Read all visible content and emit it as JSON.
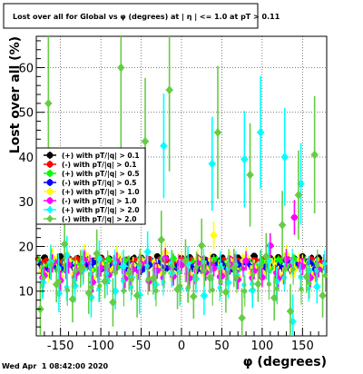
{
  "chart_data": {
    "type": "scatter",
    "title": "Lost over all for Global vs φ (degrees) at | η | <= 1.0 at pT > 0.11",
    "xlabel": "φ (degrees)",
    "ylabel": "Lost over all (%)",
    "xlim": [
      -180,
      180
    ],
    "ylim": [
      0,
      67
    ],
    "xticks": [
      -150,
      -100,
      -50,
      0,
      50,
      100,
      150
    ],
    "yticks": [
      10,
      20,
      30,
      40,
      50,
      60
    ],
    "grid": true,
    "legend_position": "left",
    "timestamp": "Wed Apr  1 08:42:00 2020",
    "series": [
      {
        "name": "(+) with pT/|q| > 0.1",
        "color": "#000000",
        "marker": "circle",
        "base": 17.2,
        "noise": 0.7,
        "err": 0.6,
        "x": [
          -170,
          -160,
          -150,
          -140,
          -130,
          -120,
          -110,
          -100,
          -90,
          -80,
          -70,
          -60,
          -50,
          -40,
          -30,
          -20,
          -10,
          0,
          10,
          20,
          30,
          40,
          50,
          60,
          70,
          80,
          90,
          100,
          110,
          120,
          130,
          140,
          150,
          160,
          170
        ],
        "y": [
          17.5,
          17.0,
          17.8,
          16.9,
          17.3,
          17.6,
          16.8,
          17.4,
          17.1,
          17.7,
          16.9,
          17.2,
          17.5,
          17.0,
          17.8,
          17.3,
          16.9,
          17.4,
          17.6,
          17.1,
          17.0,
          17.7,
          17.3,
          16.8,
          17.5,
          17.2,
          17.9,
          17.0,
          17.4,
          17.6,
          16.9,
          17.3,
          17.8,
          17.1,
          17.5
        ]
      },
      {
        "name": "(-) with pT/|q| > 0.1",
        "color": "#ff0000",
        "marker": "circle",
        "base": 16.8,
        "noise": 0.7,
        "err": 0.6,
        "x": [
          -170,
          -160,
          -150,
          -140,
          -130,
          -120,
          -110,
          -100,
          -90,
          -80,
          -70,
          -60,
          -50,
          -40,
          -30,
          -20,
          -10,
          0,
          10,
          20,
          30,
          40,
          50,
          60,
          70,
          80,
          90,
          100,
          110,
          120,
          130,
          140,
          150,
          160,
          170
        ],
        "y": [
          16.5,
          17.0,
          16.4,
          16.9,
          17.2,
          16.6,
          16.8,
          17.1,
          16.3,
          16.9,
          17.0,
          16.5,
          16.7,
          17.2,
          16.6,
          16.9,
          16.4,
          17.1,
          16.8,
          16.5,
          17.0,
          16.7,
          16.3,
          17.2,
          16.8,
          16.6,
          16.9,
          17.1,
          16.4,
          16.8,
          17.0,
          16.5,
          16.7,
          17.1,
          16.6
        ]
      },
      {
        "name": "(+) with pT/|q| > 0.5",
        "color": "#00ff00",
        "marker": "circle",
        "base": 16.0,
        "noise": 1.5,
        "err": 1.0,
        "x": [
          -170,
          -160,
          -150,
          -140,
          -130,
          -120,
          -110,
          -100,
          -90,
          -80,
          -70,
          -60,
          -50,
          -40,
          -30,
          -20,
          -10,
          0,
          10,
          20,
          30,
          40,
          50,
          60,
          70,
          80,
          90,
          100,
          110,
          120,
          130,
          140,
          150,
          160,
          170
        ],
        "y": [
          15.2,
          17.1,
          14.6,
          16.8,
          15.9,
          17.4,
          14.8,
          16.2,
          17.0,
          15.3,
          16.6,
          14.9,
          17.2,
          15.8,
          16.4,
          15.0,
          17.3,
          16.1,
          14.7,
          16.9,
          15.5,
          17.0,
          15.9,
          16.3,
          14.8,
          17.2,
          15.6,
          16.6,
          15.1,
          16.9,
          15.4,
          17.1,
          15.8,
          16.2,
          15.5
        ]
      },
      {
        "name": "(-) with pT/|q| > 0.5",
        "color": "#0000ff",
        "marker": "circle",
        "base": 15.6,
        "noise": 1.5,
        "err": 1.0,
        "x": [
          -170,
          -160,
          -150,
          -140,
          -130,
          -120,
          -110,
          -100,
          -90,
          -80,
          -70,
          -60,
          -50,
          -40,
          -30,
          -20,
          -10,
          0,
          10,
          20,
          30,
          40,
          50,
          60,
          70,
          80,
          90,
          100,
          110,
          120,
          130,
          140,
          150,
          160,
          170
        ],
        "y": [
          14.8,
          16.2,
          15.1,
          16.7,
          14.5,
          15.9,
          16.4,
          14.9,
          15.6,
          16.8,
          15.0,
          16.1,
          14.7,
          15.8,
          16.5,
          15.2,
          14.6,
          16.3,
          15.7,
          14.9,
          16.6,
          15.3,
          16.0,
          14.8,
          15.9,
          16.4,
          15.1,
          14.7,
          16.2,
          15.5,
          16.8,
          14.9,
          15.7,
          16.1,
          15.4
        ]
      },
      {
        "name": "(+) with pT/|q| > 1.0",
        "color": "#ffff00",
        "marker": "circle",
        "base": 15.2,
        "noise": 3.0,
        "err": 1.8,
        "x": [
          -170,
          -160,
          -150,
          -140,
          -130,
          -120,
          -110,
          -100,
          -90,
          -80,
          -70,
          -60,
          -50,
          -40,
          -30,
          -20,
          -10,
          0,
          10,
          20,
          30,
          40,
          50,
          60,
          70,
          80,
          90,
          100,
          110,
          120,
          130,
          140,
          150,
          160,
          170
        ],
        "y": [
          14.0,
          17.5,
          13.2,
          16.8,
          15.1,
          18.2,
          12.9,
          16.0,
          14.6,
          17.9,
          13.5,
          15.8,
          16.9,
          12.7,
          15.4,
          18.6,
          14.1,
          16.5,
          13.8,
          17.2,
          15.0,
          22.5,
          14.4,
          16.9,
          13.1,
          17.6,
          15.3,
          14.2,
          16.8,
          13.6,
          18.1,
          14.9,
          16.2,
          13.9,
          15.7
        ]
      },
      {
        "name": "(-) with pT/|q| > 1.0",
        "color": "#ff00ff",
        "marker": "circle",
        "base": 14.8,
        "noise": 3.0,
        "err": 1.8,
        "x": [
          -170,
          -160,
          -150,
          -140,
          -130,
          -120,
          -110,
          -100,
          -90,
          -80,
          -70,
          -60,
          -50,
          -40,
          -30,
          -20,
          -10,
          0,
          10,
          20,
          30,
          40,
          50,
          60,
          70,
          80,
          90,
          100,
          110,
          120,
          130,
          140,
          150,
          160,
          170
        ],
        "y": [
          13.5,
          16.2,
          12.4,
          15.9,
          14.1,
          17.0,
          12.0,
          15.2,
          13.6,
          16.6,
          12.8,
          14.9,
          16.1,
          12.2,
          14.6,
          17.4,
          13.3,
          15.8,
          12.9,
          16.3,
          14.2,
          15.1,
          13.4,
          16.0,
          12.6,
          16.8,
          14.5,
          13.1,
          20.2,
          12.8,
          17.2,
          26.5,
          15.5,
          13.0,
          14.9
        ]
      },
      {
        "name": "(+) with pT/|q| > 2.0",
        "color": "#00ffff",
        "marker": "diamond",
        "base": 13.5,
        "noise": 5.0,
        "err": 3.0,
        "x": [
          -172,
          -162,
          -152,
          -142,
          -132,
          -122,
          -112,
          -102,
          -92,
          -82,
          -72,
          -62,
          -52,
          -42,
          -32,
          -22,
          -12,
          -2,
          8,
          18,
          28,
          38,
          48,
          58,
          68,
          78,
          88,
          98,
          108,
          118,
          128,
          138,
          148,
          158,
          168
        ],
        "y": [
          12.0,
          16.5,
          9.5,
          18.0,
          11.2,
          14.8,
          8.6,
          17.2,
          12.4,
          10.0,
          15.6,
          13.1,
          9.2,
          18.8,
          11.5,
          42.5,
          14.0,
          10.6,
          16.2,
          12.8,
          9.0,
          38.5,
          15.4,
          11.9,
          13.6,
          39.5,
          10.2,
          45.5,
          16.8,
          12.1,
          40.0,
          3.2,
          34.0,
          14.6,
          11.0
        ]
      },
      {
        "name": "(-) with pT/|q| > 2.0",
        "color": "#66cc44",
        "marker": "diamond",
        "base": 13.0,
        "noise": 5.0,
        "err": 3.5,
        "x": [
          -175,
          -165,
          -155,
          -145,
          -135,
          -125,
          -115,
          -105,
          -95,
          -85,
          -75,
          -65,
          -55,
          -45,
          -35,
          -25,
          -15,
          -5,
          5,
          15,
          25,
          35,
          45,
          55,
          65,
          75,
          85,
          95,
          105,
          115,
          125,
          135,
          145,
          155,
          165,
          175
        ],
        "y": [
          6.0,
          52.0,
          11.5,
          20.5,
          8.2,
          15.0,
          9.6,
          18.4,
          12.2,
          7.5,
          60.0,
          14.1,
          9.0,
          43.5,
          12.8,
          21.5,
          55.0,
          10.4,
          16.8,
          8.8,
          20.2,
          13.0,
          45.5,
          9.8,
          15.2,
          4.0,
          36.0,
          11.6,
          17.8,
          8.5,
          24.8,
          5.5,
          31.5,
          13.2,
          40.5,
          9.0
        ]
      }
    ]
  }
}
